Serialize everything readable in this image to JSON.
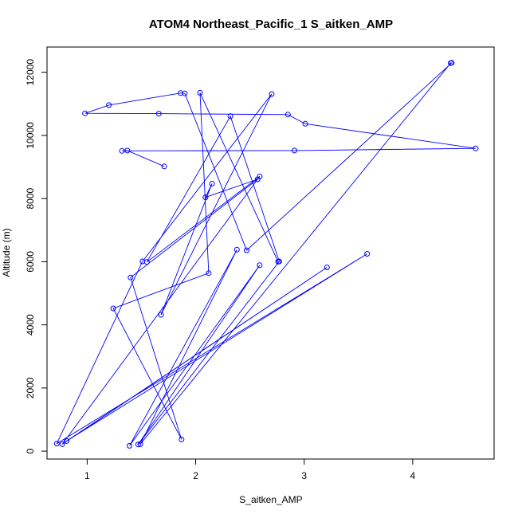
{
  "chart_data": {
    "type": "line",
    "title": "ATOM4 Northeast_Pacific_1 S_aitken_AMP",
    "xlabel": "S_aitken_AMP",
    "ylabel": "Altitude (m)",
    "xlim": [
      0.63,
      4.75
    ],
    "ylim": [
      -250,
      12800
    ],
    "xticks": [
      1,
      2,
      3,
      4
    ],
    "yticks": [
      0,
      2000,
      4000,
      6000,
      8000,
      10000,
      12000
    ],
    "grid": false,
    "legend": "none",
    "colors": {
      "series": "#0000ff",
      "axis": "#000000"
    },
    "series": [
      {
        "marker": "open-circle",
        "points": [
          [
            1.71,
            9020
          ],
          [
            1.37,
            9520
          ],
          [
            1.32,
            9510
          ],
          [
            2.91,
            9520
          ],
          [
            4.58,
            9590
          ],
          [
            3.01,
            10370
          ],
          [
            2.85,
            10660
          ],
          [
            1.66,
            10690
          ],
          [
            0.98,
            10700
          ],
          [
            1.2,
            10960
          ],
          [
            1.86,
            11340
          ],
          [
            1.9,
            11330
          ],
          [
            2.47,
            6360
          ],
          [
            4.36,
            12300
          ],
          [
            4.35,
            12290
          ],
          [
            1.49,
            220
          ],
          [
            2.38,
            6380
          ],
          [
            1.39,
            170
          ],
          [
            2.59,
            5890
          ],
          [
            1.47,
            210
          ],
          [
            2.77,
            6010
          ],
          [
            2.32,
            10610
          ],
          [
            1.55,
            5990
          ],
          [
            2.59,
            8700
          ],
          [
            0.77,
            220
          ],
          [
            3.21,
            5820
          ],
          [
            0.81,
            320
          ],
          [
            3.58,
            6250
          ],
          [
            0.72,
            240
          ],
          [
            1.51,
            6010
          ],
          [
            2.7,
            11310
          ],
          [
            1.68,
            4320
          ],
          [
            2.15,
            8470
          ],
          [
            2.09,
            8040
          ],
          [
            2.57,
            8610
          ],
          [
            1.4,
            5500
          ],
          [
            1.87,
            370
          ],
          [
            1.24,
            4520
          ],
          [
            2.12,
            5640
          ],
          [
            2.04,
            11350
          ],
          [
            2.76,
            6000
          ]
        ]
      }
    ]
  }
}
